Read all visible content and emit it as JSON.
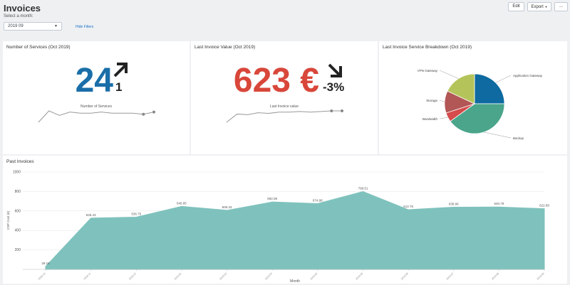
{
  "page": {
    "title": "Invoices",
    "select_label": "Select a month:",
    "month_value": "2019 09",
    "hide_filters": "Hide Filters",
    "buttons": {
      "edit": "Edit",
      "export": "Export",
      "more": "..."
    }
  },
  "services": {
    "title": "Number of Services (Oct 2019)",
    "value": "24",
    "delta": "1",
    "trend_label": "Number of Services",
    "trend": [
      12,
      22,
      18,
      21,
      20,
      20,
      21,
      20,
      20,
      20,
      19,
      21
    ],
    "color": "#1a6ea8"
  },
  "invoice": {
    "title": "Last Invoice Value (Oct 2019)",
    "value": "623 €",
    "delta": "-3%",
    "trend_label": "Last Invoice value",
    "trend": [
      5,
      18,
      17,
      20,
      19,
      21,
      21,
      22,
      21,
      22,
      23,
      23
    ],
    "color": "#d8473a"
  },
  "breakdown": {
    "title": "Last Invoice Service Breakdown (Oct 2019)"
  },
  "past": {
    "title": "Past Invoices"
  },
  "chart_data": [
    {
      "type": "pie",
      "title": "Last Invoice Service Breakdown (Oct 2019)",
      "labels": [
        "Application Gateway",
        "Backup",
        "Bandwidth",
        "Storage",
        "VPN Gateway"
      ],
      "values": [
        25,
        40,
        5,
        12,
        18
      ],
      "colors": [
        "#0e6aa0",
        "#4aa58a",
        "#d64b4b",
        "#b25656",
        "#b5c45a"
      ]
    },
    {
      "type": "area",
      "title": "Past Invoices",
      "xlabel": "Month",
      "ylabel": "CSP Cost (€)",
      "ylim": [
        0,
        1000
      ],
      "yticks": [
        "1000",
        "800",
        "600",
        "400",
        "200"
      ],
      "categories": [
        "2018-10",
        "2018-11",
        "2018-12",
        "2019-01",
        "2019-02",
        "2019-03",
        "2019-04",
        "2019-05",
        "2019-06",
        "2019-07",
        "2019-08",
        "2019-09"
      ],
      "values": [
        29.18,
        526.43,
        536.75,
        646.95,
        606.33,
        692.08,
        674.98,
        799.51,
        612.76,
        638.96,
        640.79,
        622.89
      ],
      "value_labels": [
        "29.18",
        "526.43",
        "536.75",
        "646.95",
        "606.33",
        "692.08",
        "674.98",
        "799.51",
        "612.76",
        "638.96",
        "640.79",
        "622.89"
      ],
      "color": "#7fc2bd"
    }
  ]
}
